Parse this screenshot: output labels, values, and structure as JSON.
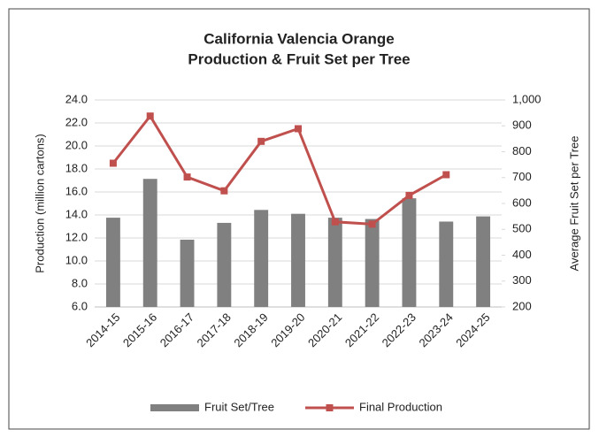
{
  "chart_data": {
    "type": "bar-line",
    "title": [
      "California Valencia Orange",
      "Production & Fruit Set per Tree"
    ],
    "y_label": "Production (million cartons)",
    "y2_label": "Average Fruit Set per Tree",
    "categories": [
      "2014-15",
      "2015-16",
      "2016-17",
      "2017-18",
      "2018-19",
      "2019-20",
      "2020-21",
      "2021-22",
      "2022-23",
      "2023-24",
      "2024-25"
    ],
    "series": [
      {
        "name": "Fruit Set/Tree",
        "type": "bar",
        "axis": "y2",
        "color": "#808080",
        "values": [
          545,
          695,
          460,
          525,
          575,
          560,
          545,
          540,
          620,
          530,
          550
        ]
      },
      {
        "name": "Final Production",
        "type": "line",
        "axis": "y",
        "color": "#c0504d",
        "values": [
          18.5,
          22.6,
          17.3,
          16.1,
          20.4,
          21.5,
          13.4,
          13.2,
          15.7,
          17.5,
          null
        ]
      }
    ],
    "ylim": [
      6,
      24
    ],
    "yticks": [
      {
        "value": 6,
        "label": "6.0"
      },
      {
        "value": 8,
        "label": "8.0"
      },
      {
        "value": 10,
        "label": "10.0"
      },
      {
        "value": 12,
        "label": "12.0"
      },
      {
        "value": 14,
        "label": "14.0"
      },
      {
        "value": 16,
        "label": "16.0"
      },
      {
        "value": 18,
        "label": "18.0"
      },
      {
        "value": 20,
        "label": "20.0"
      },
      {
        "value": 22,
        "label": "22.0"
      },
      {
        "value": 24,
        "label": "24.0"
      }
    ],
    "y2lim": [
      200,
      1000
    ],
    "y2ticks": [
      200,
      300,
      400,
      500,
      600,
      700,
      800,
      900,
      {
        "value": 1000,
        "label": "1,000"
      }
    ],
    "grid": true,
    "legend": "bottom"
  }
}
